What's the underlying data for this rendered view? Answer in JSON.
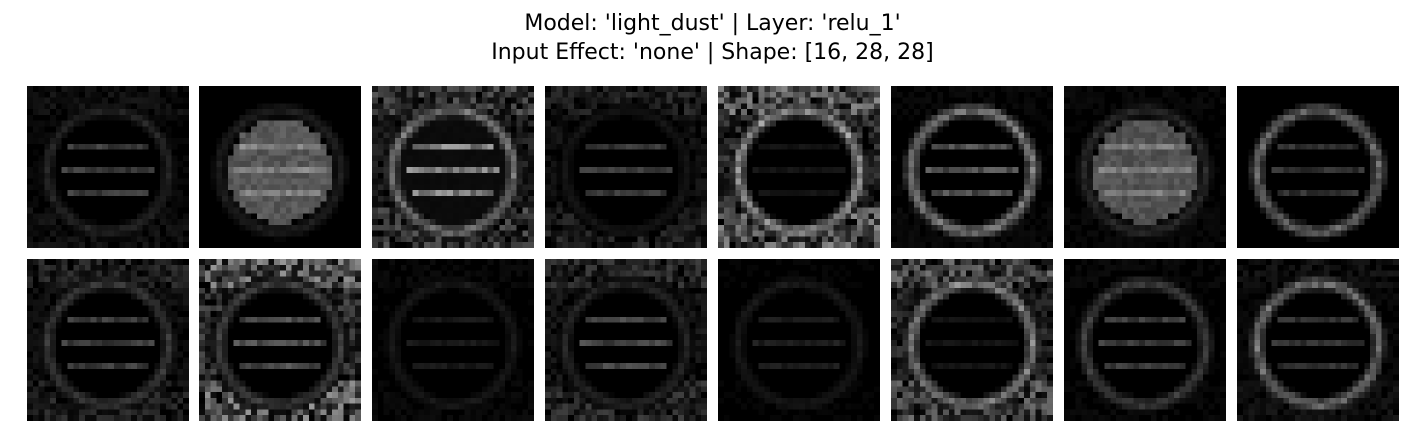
{
  "title": {
    "line1": "Model: 'light_dust' | Layer: 'relu_1'",
    "line2": "Input Effect: 'none' | Shape: [16, 28, 28]"
  },
  "feature_maps": [
    {
      "channel": 0,
      "motif": "sign-circle-with-bars",
      "ring": 0.18,
      "inner": 0.3,
      "fill": 0.0,
      "corner": 0.1
    },
    {
      "channel": 1,
      "motif": "blurred-disc-two-dots",
      "ring": 0.15,
      "inner": 0.2,
      "fill": 0.4,
      "corner": 0.0
    },
    {
      "channel": 2,
      "motif": "ring-with-diagonal",
      "ring": 0.55,
      "inner": 0.6,
      "fill": 0.05,
      "corner": 0.35
    },
    {
      "channel": 3,
      "motif": "faint-bars",
      "ring": 0.1,
      "inner": 0.28,
      "fill": 0.0,
      "corner": 0.2
    },
    {
      "channel": 4,
      "motif": "bright-ring-bright-bg",
      "ring": 0.7,
      "inner": 0.1,
      "fill": 0.0,
      "corner": 0.55
    },
    {
      "channel": 5,
      "motif": "bright-bottom-arc",
      "ring": 0.6,
      "inner": 0.4,
      "fill": 0.0,
      "corner": 0.05
    },
    {
      "channel": 6,
      "motif": "blurred-disc",
      "ring": 0.2,
      "inner": 0.2,
      "fill": 0.38,
      "corner": 0.05
    },
    {
      "channel": 7,
      "motif": "thin-left-arc",
      "ring": 0.5,
      "inner": 0.25,
      "fill": 0.0,
      "corner": 0.0
    },
    {
      "channel": 8,
      "motif": "ring-with-s-shape",
      "ring": 0.28,
      "inner": 0.3,
      "fill": 0.0,
      "corner": 0.2
    },
    {
      "channel": 9,
      "motif": "bars-bright-corners",
      "ring": 0.3,
      "inner": 0.38,
      "fill": 0.0,
      "corner": 0.6
    },
    {
      "channel": 10,
      "motif": "faint-ring-digits",
      "ring": 0.12,
      "inner": 0.12,
      "fill": 0.0,
      "corner": 0.05
    },
    {
      "channel": 11,
      "motif": "bars-and-bottom-glow",
      "ring": 0.18,
      "inner": 0.35,
      "fill": 0.0,
      "corner": 0.25
    },
    {
      "channel": 12,
      "motif": "faint-ring-digits",
      "ring": 0.12,
      "inner": 0.15,
      "fill": 0.0,
      "corner": 0.03
    },
    {
      "channel": 13,
      "motif": "bright-ring-noisy-bg",
      "ring": 0.62,
      "inner": 0.1,
      "fill": 0.0,
      "corner": 0.45
    },
    {
      "channel": 14,
      "motif": "ring-digits",
      "ring": 0.3,
      "inner": 0.3,
      "fill": 0.0,
      "corner": 0.05
    },
    {
      "channel": 15,
      "motif": "tilted-ring",
      "ring": 0.55,
      "inner": 0.25,
      "fill": 0.0,
      "corner": 0.1
    }
  ]
}
